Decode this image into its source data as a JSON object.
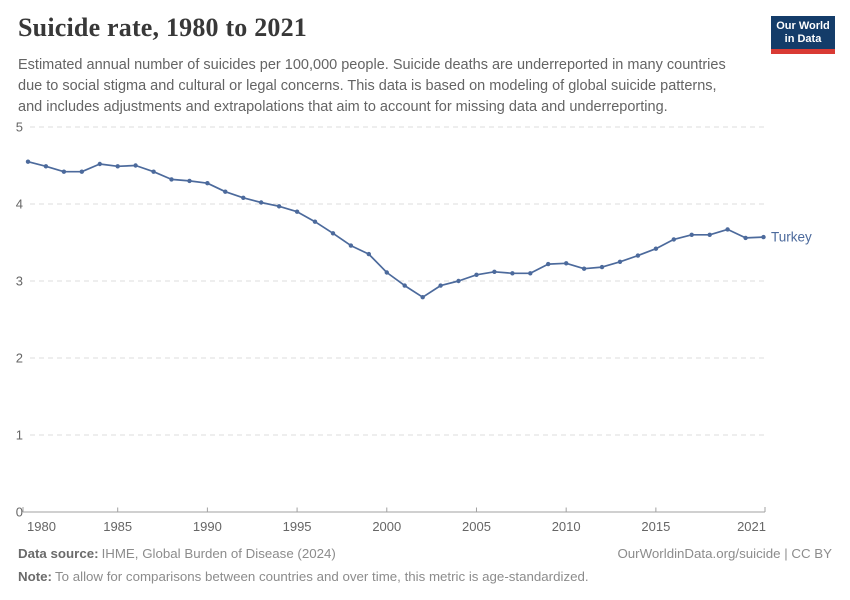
{
  "header": {
    "title": "Suicide rate, 1980 to 2021",
    "subtitle_lines": [
      "Estimated annual number of suicides per 100,000 people. Suicide deaths are underreported in many countries",
      "due to social stigma and cultural or legal concerns. This data is based on modeling of global suicide patterns,",
      "and includes adjustments and extrapolations that aim to account for missing data and underreporting."
    ],
    "logo": {
      "line1": "Our World",
      "line2": "in Data"
    }
  },
  "chart_data": {
    "type": "line",
    "title": "Suicide rate, 1980 to 2021",
    "x": [
      1980,
      1981,
      1982,
      1983,
      1984,
      1985,
      1986,
      1987,
      1988,
      1989,
      1990,
      1991,
      1992,
      1993,
      1994,
      1995,
      1996,
      1997,
      1998,
      1999,
      2000,
      2001,
      2002,
      2003,
      2004,
      2005,
      2006,
      2007,
      2008,
      2009,
      2010,
      2011,
      2012,
      2013,
      2014,
      2015,
      2016,
      2017,
      2018,
      2019,
      2020,
      2021
    ],
    "series": [
      {
        "name": "Turkey",
        "values": [
          4.55,
          4.49,
          4.42,
          4.42,
          4.52,
          4.49,
          4.5,
          4.42,
          4.32,
          4.3,
          4.27,
          4.16,
          4.08,
          4.02,
          3.97,
          3.9,
          3.77,
          3.62,
          3.46,
          3.35,
          3.11,
          2.94,
          2.79,
          2.94,
          3.0,
          3.08,
          3.12,
          3.1,
          3.1,
          3.22,
          3.23,
          3.16,
          3.18,
          3.25,
          3.33,
          3.42,
          3.54,
          3.6,
          3.6,
          3.67,
          3.56,
          3.57
        ]
      }
    ],
    "xlabel": "",
    "ylabel": "",
    "ylim": [
      0,
      5
    ],
    "yticks": [
      0,
      1,
      2,
      3,
      4,
      5
    ],
    "xticks": [
      1980,
      1985,
      1990,
      1995,
      2000,
      2005,
      2010,
      2015,
      2021
    ],
    "grid": "horizontal-dashed",
    "legend_position": "end-of-line",
    "end_label": "Turkey"
  },
  "footer": {
    "datasource_label": "Data source:",
    "datasource_value": "IHME, Global Burden of Disease (2024)",
    "note_label": "Note:",
    "note_value": "To allow for comparisons between countries and over time, this metric is age-standardized.",
    "attribution": "OurWorldinData.org/suicide | CC BY"
  },
  "colors": {
    "line": "#4C6A9C",
    "grid": "#dcdcdc",
    "axis": "#a1a1a1",
    "tick_label": "#666666",
    "title": "#383838",
    "subtitle": "#646464",
    "logo_bg": "#143c69",
    "logo_stripe": "#d93a34"
  }
}
